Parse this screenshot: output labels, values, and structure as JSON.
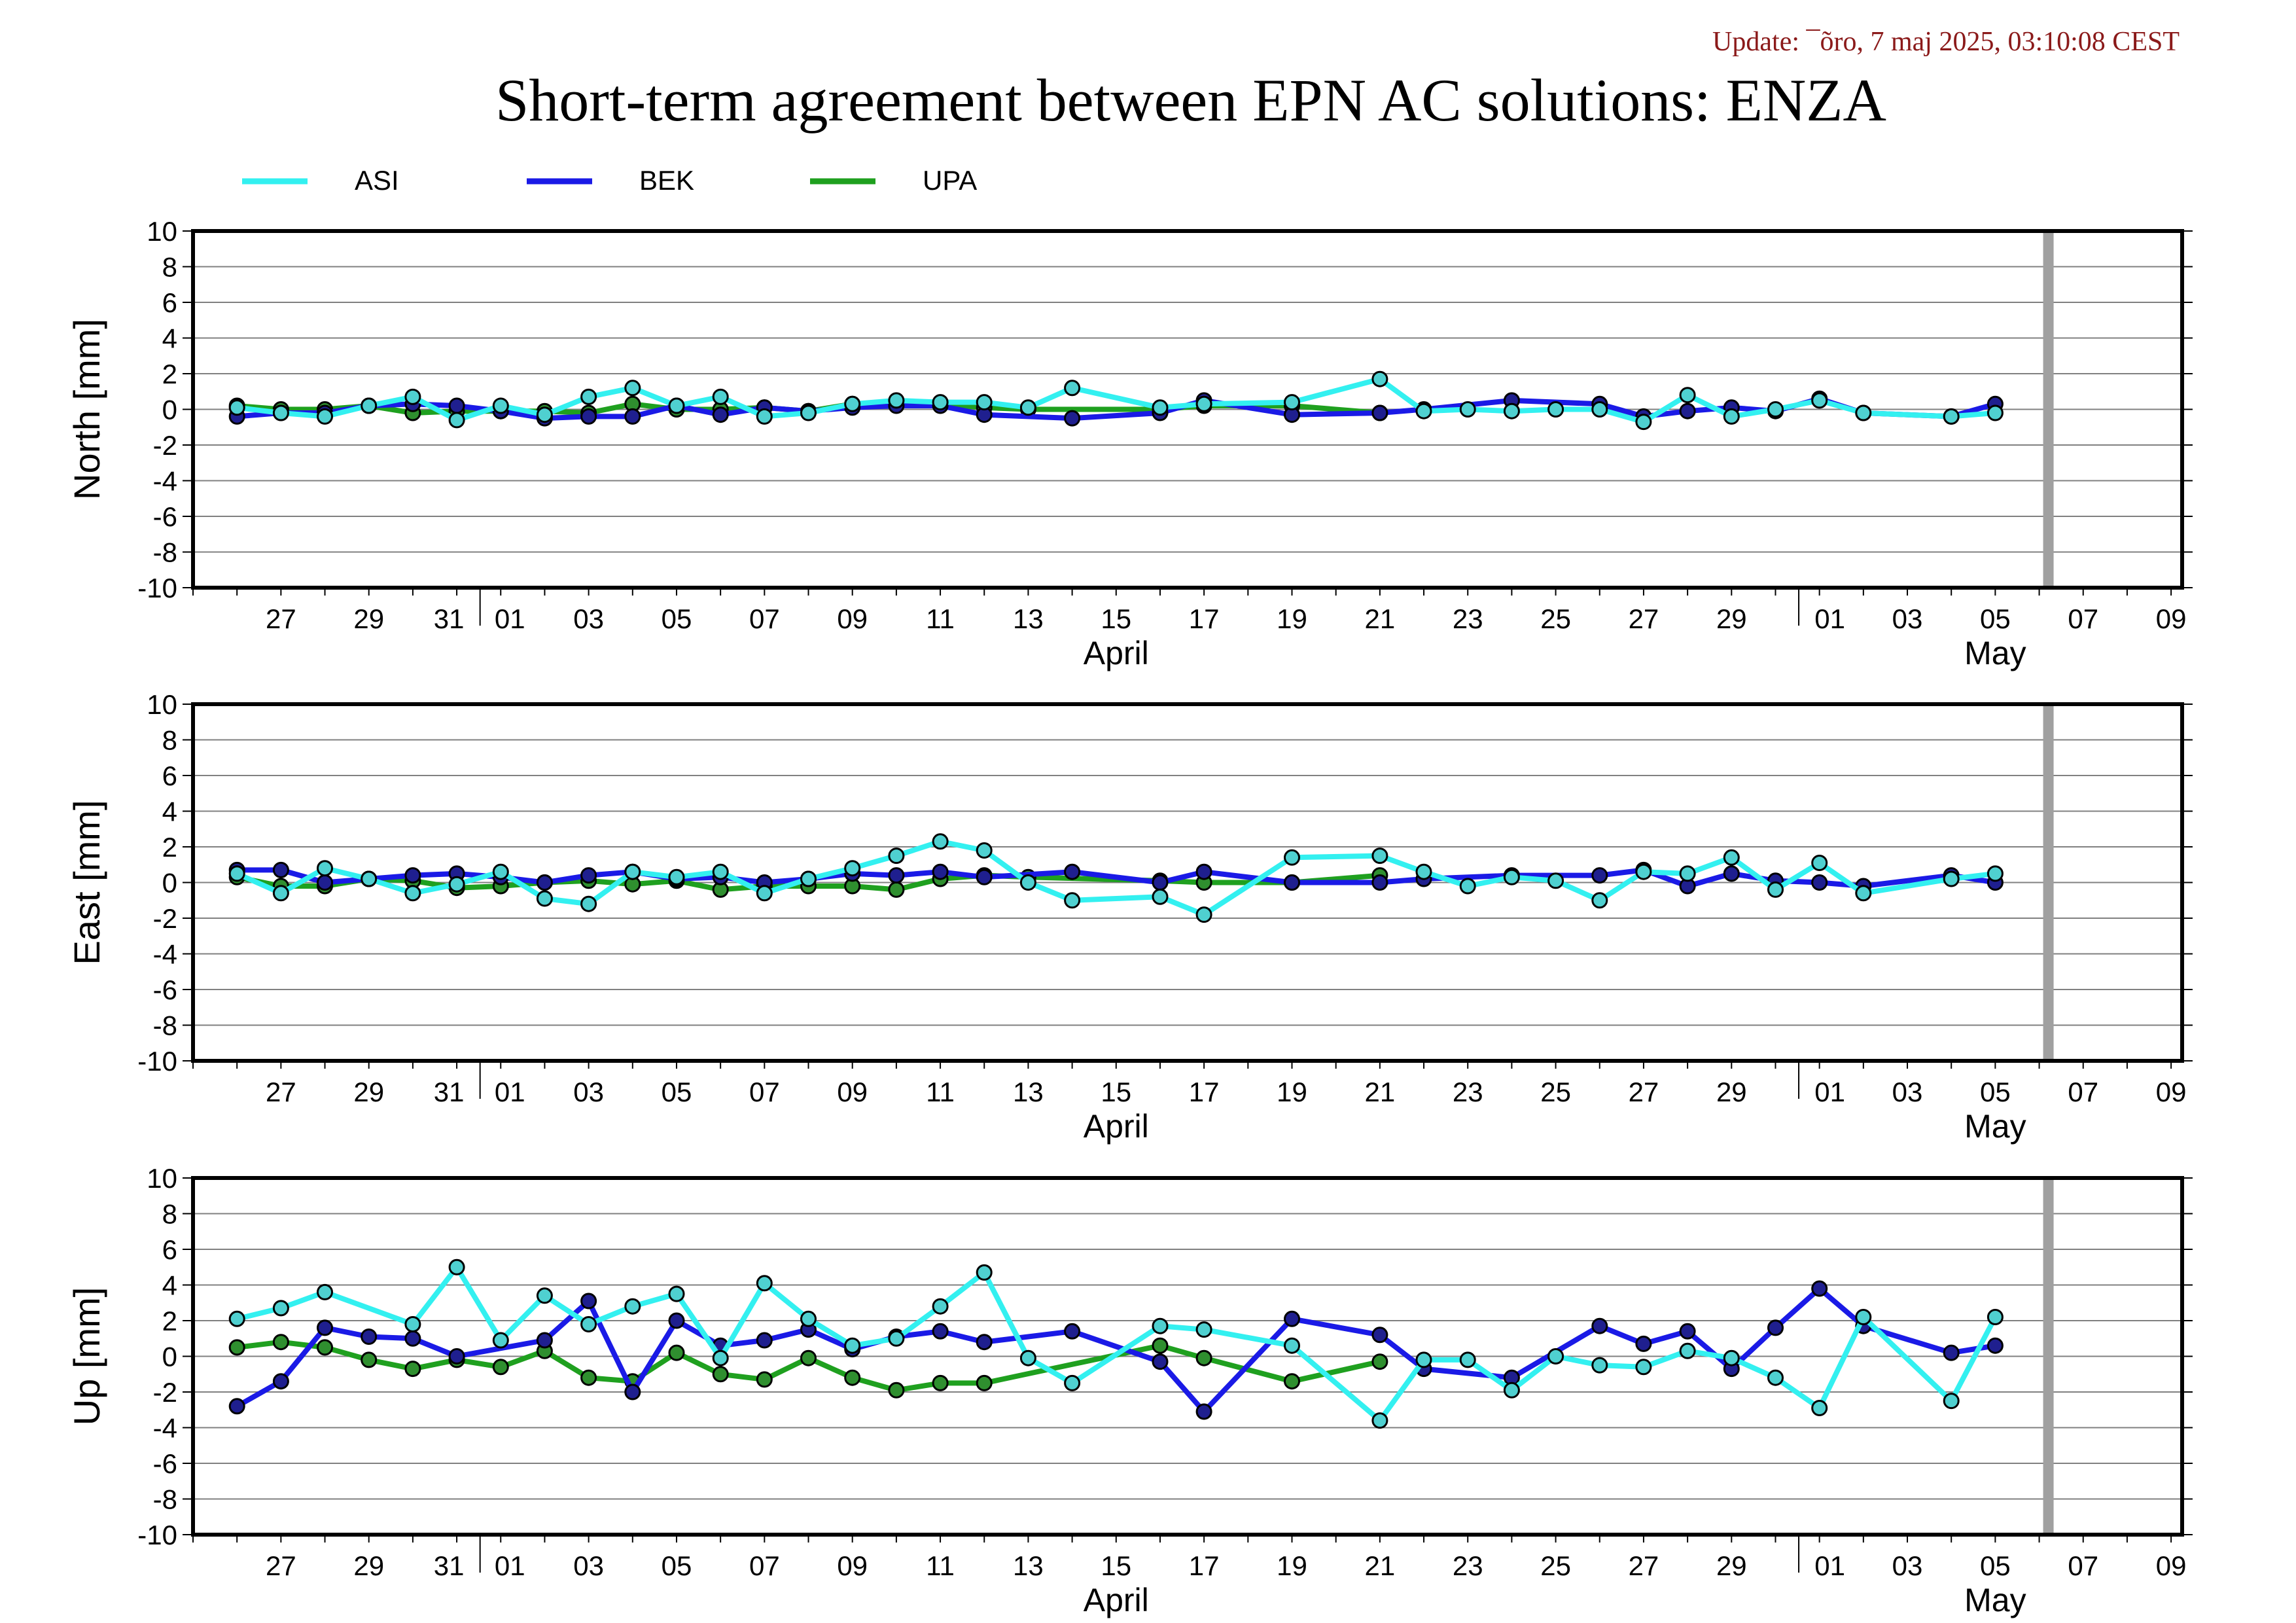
{
  "header": {
    "update": "Update: ¯õro, 7 maj 2025, 03:10:08 CEST",
    "title": "Short-term agreement between EPN AC solutions: ENZA"
  },
  "colors": {
    "ASI": "#33f0f0",
    "BEK": "#1a1ae6",
    "UPA": "#1fa01f",
    "marker_fill_ASI": "#4fd0d0",
    "marker_fill_BEK": "#1f1f8f",
    "marker_fill_UPA": "#2f8f2f",
    "grid": "#808080",
    "today_bar": "#a0a0a0"
  },
  "chart_data": {
    "type": "line",
    "legend": [
      "ASI",
      "BEK",
      "UPA"
    ],
    "legend_placement": "top-left",
    "x_range": [
      "2025-03-25",
      "2025-05-10"
    ],
    "x_ticks": [
      "27",
      "29",
      "31",
      "01",
      "03",
      "05",
      "07",
      "09",
      "11",
      "13",
      "15",
      "17",
      "19",
      "21",
      "23",
      "25",
      "27",
      "29",
      "01",
      "03",
      "05",
      "07",
      "09"
    ],
    "x_month_labels": [
      "April",
      "May"
    ],
    "today_marker": "2025-05-06",
    "ylim": [
      -10,
      10
    ],
    "y_ticks": [
      "10",
      "8",
      "6",
      "4",
      "2",
      "0",
      "-2",
      "-4",
      "-6",
      "-8",
      "-10"
    ],
    "grid": true,
    "panels": [
      {
        "ylabel": "North [mm]",
        "series": [
          {
            "name": "ASI",
            "x": [
              "2025-03-26",
              "2025-03-27",
              "2025-03-28",
              "2025-03-29",
              "2025-03-30",
              "2025-03-31",
              "2025-04-01",
              "2025-04-02",
              "2025-04-03",
              "2025-04-04",
              "2025-04-05",
              "2025-04-06",
              "2025-04-07",
              "2025-04-08",
              "2025-04-09",
              "2025-04-10",
              "2025-04-11",
              "2025-04-12",
              "2025-04-13",
              "2025-04-14",
              "2025-04-16",
              "2025-04-17",
              "2025-04-19",
              "2025-04-21",
              "2025-04-22",
              "2025-04-23",
              "2025-04-24",
              "2025-04-25",
              "2025-04-26",
              "2025-04-27",
              "2025-04-28",
              "2025-04-29",
              "2025-04-30",
              "2025-05-01",
              "2025-05-02",
              "2025-05-04",
              "2025-05-05"
            ],
            "y": [
              0.1,
              -0.2,
              -0.4,
              0.2,
              0.7,
              -0.6,
              0.2,
              -0.3,
              0.7,
              1.2,
              0.2,
              0.7,
              -0.4,
              -0.2,
              0.3,
              0.5,
              0.4,
              0.4,
              0.1,
              1.2,
              0.1,
              0.3,
              0.4,
              1.7,
              -0.1,
              0.0,
              -0.1,
              0.0,
              0.0,
              -0.7,
              0.8,
              -0.4,
              0.0,
              0.5,
              -0.2,
              -0.4,
              -0.2
            ]
          },
          {
            "name": "BEK",
            "x": [
              "2025-03-26",
              "2025-03-27",
              "2025-03-28",
              "2025-03-29",
              "2025-03-30",
              "2025-03-31",
              "2025-04-01",
              "2025-04-02",
              "2025-04-03",
              "2025-04-04",
              "2025-04-05",
              "2025-04-06",
              "2025-04-07",
              "2025-04-08",
              "2025-04-09",
              "2025-04-10",
              "2025-04-11",
              "2025-04-12",
              "2025-04-14",
              "2025-04-16",
              "2025-04-17",
              "2025-04-19",
              "2025-04-21",
              "2025-04-22",
              "2025-04-24",
              "2025-04-26",
              "2025-04-27",
              "2025-04-28",
              "2025-04-29",
              "2025-04-30",
              "2025-05-01",
              "2025-05-02",
              "2025-05-04",
              "2025-05-05"
            ],
            "y": [
              -0.4,
              -0.2,
              -0.2,
              0.2,
              0.3,
              0.2,
              -0.1,
              -0.5,
              -0.4,
              -0.4,
              0.2,
              -0.3,
              0.1,
              -0.1,
              0.1,
              0.2,
              0.2,
              -0.3,
              -0.5,
              -0.2,
              0.5,
              -0.3,
              -0.2,
              0.0,
              0.5,
              0.3,
              -0.4,
              -0.1,
              0.1,
              -0.1,
              0.6,
              -0.2,
              -0.4,
              0.3
            ]
          },
          {
            "name": "UPA",
            "x": [
              "2025-03-26",
              "2025-03-27",
              "2025-03-28",
              "2025-03-29",
              "2025-03-30",
              "2025-03-31",
              "2025-04-01",
              "2025-04-02",
              "2025-04-03",
              "2025-04-04",
              "2025-04-05",
              "2025-04-06",
              "2025-04-07",
              "2025-04-08",
              "2025-04-09",
              "2025-04-10",
              "2025-04-11",
              "2025-04-12",
              "2025-04-13",
              "2025-04-16",
              "2025-04-17",
              "2025-04-19",
              "2025-04-21"
            ],
            "y": [
              0.2,
              0.0,
              0.0,
              0.2,
              -0.2,
              -0.1,
              -0.1,
              -0.1,
              -0.2,
              0.3,
              0.0,
              0.0,
              0.1,
              -0.1,
              0.3,
              0.3,
              0.3,
              0.1,
              0.0,
              0.0,
              0.2,
              0.2,
              -0.2
            ]
          }
        ]
      },
      {
        "ylabel": "East [mm]",
        "series": [
          {
            "name": "ASI",
            "x": [
              "2025-03-26",
              "2025-03-27",
              "2025-03-28",
              "2025-03-29",
              "2025-03-30",
              "2025-03-31",
              "2025-04-01",
              "2025-04-02",
              "2025-04-03",
              "2025-04-04",
              "2025-04-05",
              "2025-04-06",
              "2025-04-07",
              "2025-04-08",
              "2025-04-09",
              "2025-04-10",
              "2025-04-11",
              "2025-04-12",
              "2025-04-13",
              "2025-04-14",
              "2025-04-16",
              "2025-04-17",
              "2025-04-19",
              "2025-04-21",
              "2025-04-22",
              "2025-04-23",
              "2025-04-24",
              "2025-04-25",
              "2025-04-26",
              "2025-04-27",
              "2025-04-28",
              "2025-04-29",
              "2025-04-30",
              "2025-05-01",
              "2025-05-02",
              "2025-05-04",
              "2025-05-05"
            ],
            "y": [
              0.5,
              -0.6,
              0.8,
              0.2,
              -0.6,
              -0.1,
              0.6,
              -0.9,
              -1.2,
              0.6,
              0.3,
              0.6,
              -0.6,
              0.2,
              0.8,
              1.5,
              2.3,
              1.8,
              0.0,
              -1.0,
              -0.8,
              -1.8,
              1.4,
              1.5,
              0.6,
              -0.2,
              0.3,
              0.1,
              -1.0,
              0.6,
              0.5,
              1.4,
              -0.4,
              1.1,
              -0.6,
              0.2,
              0.5
            ]
          },
          {
            "name": "BEK",
            "x": [
              "2025-03-26",
              "2025-03-27",
              "2025-03-28",
              "2025-03-29",
              "2025-03-30",
              "2025-03-31",
              "2025-04-01",
              "2025-04-02",
              "2025-04-03",
              "2025-04-04",
              "2025-04-05",
              "2025-04-06",
              "2025-04-07",
              "2025-04-08",
              "2025-04-09",
              "2025-04-10",
              "2025-04-11",
              "2025-04-12",
              "2025-04-14",
              "2025-04-16",
              "2025-04-17",
              "2025-04-19",
              "2025-04-21",
              "2025-04-22",
              "2025-04-24",
              "2025-04-26",
              "2025-04-27",
              "2025-04-28",
              "2025-04-29",
              "2025-04-30",
              "2025-05-01",
              "2025-05-02",
              "2025-05-04",
              "2025-05-05"
            ],
            "y": [
              0.7,
              0.7,
              0.0,
              0.2,
              0.4,
              0.5,
              0.3,
              0.0,
              0.4,
              0.6,
              0.2,
              0.3,
              0.0,
              0.2,
              0.5,
              0.4,
              0.6,
              0.3,
              0.6,
              0.0,
              0.6,
              0.0,
              0.0,
              0.2,
              0.4,
              0.4,
              0.7,
              -0.2,
              0.5,
              0.1,
              0.0,
              -0.2,
              0.4,
              0.0
            ]
          },
          {
            "name": "UPA",
            "x": [
              "2025-03-26",
              "2025-03-27",
              "2025-03-28",
              "2025-03-29",
              "2025-03-30",
              "2025-03-31",
              "2025-04-01",
              "2025-04-02",
              "2025-04-03",
              "2025-04-04",
              "2025-04-05",
              "2025-04-06",
              "2025-04-07",
              "2025-04-08",
              "2025-04-09",
              "2025-04-10",
              "2025-04-11",
              "2025-04-12",
              "2025-04-13",
              "2025-04-16",
              "2025-04-17",
              "2025-04-19",
              "2025-04-21"
            ],
            "y": [
              0.3,
              -0.2,
              -0.2,
              0.2,
              0.1,
              -0.3,
              -0.2,
              0.0,
              0.1,
              -0.1,
              0.1,
              -0.4,
              -0.2,
              -0.2,
              -0.2,
              -0.4,
              0.2,
              0.4,
              0.3,
              0.1,
              0.0,
              0.0,
              0.4
            ]
          }
        ]
      },
      {
        "ylabel": "Up [mm]",
        "series": [
          {
            "name": "ASI",
            "x": [
              "2025-03-26",
              "2025-03-27",
              "2025-03-28",
              "2025-03-30",
              "2025-03-31",
              "2025-04-01",
              "2025-04-02",
              "2025-04-03",
              "2025-04-04",
              "2025-04-05",
              "2025-04-06",
              "2025-04-07",
              "2025-04-08",
              "2025-04-09",
              "2025-04-10",
              "2025-04-11",
              "2025-04-12",
              "2025-04-13",
              "2025-04-14",
              "2025-04-16",
              "2025-04-17",
              "2025-04-19",
              "2025-04-21",
              "2025-04-22",
              "2025-04-23",
              "2025-04-24",
              "2025-04-25",
              "2025-04-26",
              "2025-04-27",
              "2025-04-28",
              "2025-04-29",
              "2025-04-30",
              "2025-05-01",
              "2025-05-02",
              "2025-05-04",
              "2025-05-05"
            ],
            "y": [
              2.1,
              2.7,
              3.6,
              1.8,
              5.0,
              0.9,
              3.4,
              1.8,
              2.8,
              3.5,
              -0.1,
              4.1,
              2.1,
              0.6,
              1.0,
              2.8,
              4.7,
              -0.1,
              -1.5,
              1.7,
              1.5,
              0.6,
              -3.6,
              -0.2,
              -0.2,
              -1.9,
              0.0,
              -0.5,
              -0.6,
              0.3,
              -0.1,
              -1.2,
              -2.9,
              2.2,
              -2.5,
              2.2
            ]
          },
          {
            "name": "BEK",
            "x": [
              "2025-03-26",
              "2025-03-27",
              "2025-03-28",
              "2025-03-29",
              "2025-03-30",
              "2025-03-31",
              "2025-04-02",
              "2025-04-03",
              "2025-04-04",
              "2025-04-05",
              "2025-04-06",
              "2025-04-07",
              "2025-04-08",
              "2025-04-09",
              "2025-04-10",
              "2025-04-11",
              "2025-04-12",
              "2025-04-14",
              "2025-04-16",
              "2025-04-17",
              "2025-04-19",
              "2025-04-21",
              "2025-04-22",
              "2025-04-24",
              "2025-04-26",
              "2025-04-27",
              "2025-04-28",
              "2025-04-29",
              "2025-04-30",
              "2025-05-01",
              "2025-05-02",
              "2025-05-04",
              "2025-05-05"
            ],
            "y": [
              -2.8,
              -1.4,
              1.6,
              1.1,
              1.0,
              0.0,
              0.9,
              3.1,
              -2.0,
              2.0,
              0.6,
              0.9,
              1.5,
              0.4,
              1.1,
              1.4,
              0.8,
              1.4,
              -0.3,
              -3.1,
              2.1,
              1.2,
              -0.7,
              -1.2,
              1.7,
              0.7,
              1.4,
              -0.7,
              1.6,
              3.8,
              1.7,
              0.2,
              0.6
            ]
          },
          {
            "name": "UPA",
            "x": [
              "2025-03-26",
              "2025-03-27",
              "2025-03-28",
              "2025-03-29",
              "2025-03-30",
              "2025-03-31",
              "2025-04-01",
              "2025-04-02",
              "2025-04-03",
              "2025-04-04",
              "2025-04-05",
              "2025-04-06",
              "2025-04-07",
              "2025-04-08",
              "2025-04-09",
              "2025-04-10",
              "2025-04-11",
              "2025-04-12",
              "2025-04-16",
              "2025-04-17",
              "2025-04-19",
              "2025-04-21"
            ],
            "y": [
              0.5,
              0.8,
              0.5,
              -0.2,
              -0.7,
              -0.2,
              -0.6,
              0.3,
              -1.2,
              -1.4,
              0.2,
              -1.0,
              -1.3,
              -0.1,
              -1.2,
              -1.9,
              -1.5,
              -1.5,
              0.6,
              -0.1,
              -1.4,
              -0.3
            ]
          }
        ]
      }
    ]
  }
}
